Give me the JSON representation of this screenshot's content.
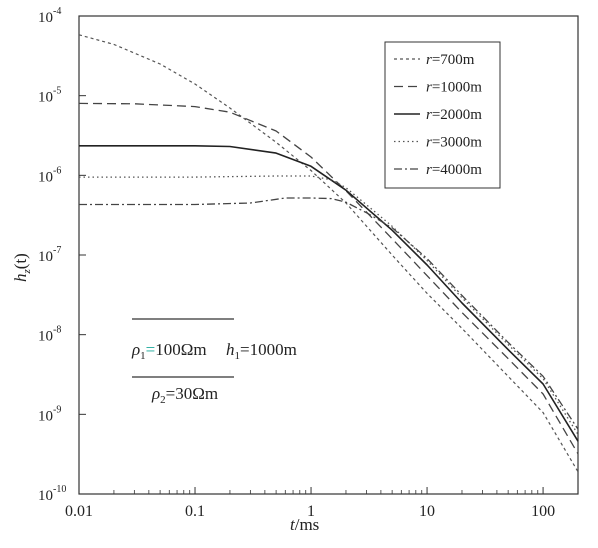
{
  "chart_data": {
    "type": "line",
    "x_scale": "log",
    "y_scale": "log",
    "xlim": [
      0.01,
      200
    ],
    "ylim": [
      1e-10,
      0.0001
    ],
    "xlabel": {
      "main": "t",
      "unit": "/ms"
    },
    "ylabel": {
      "main": "h",
      "sub": "z",
      "arg": "(t)"
    },
    "x_ticks": [
      {
        "value": 0.01,
        "label": "0.01"
      },
      {
        "value": 0.1,
        "label": "0.1"
      },
      {
        "value": 1,
        "label": "1"
      },
      {
        "value": 10,
        "label": "10"
      },
      {
        "value": 100,
        "label": "100"
      }
    ],
    "y_ticks": [
      {
        "value": 1e-10,
        "base": "10",
        "exp": "-10"
      },
      {
        "value": 1e-09,
        "base": "10",
        "exp": "-9"
      },
      {
        "value": 1e-08,
        "base": "10",
        "exp": "-8"
      },
      {
        "value": 1e-07,
        "base": "10",
        "exp": "-7"
      },
      {
        "value": 1e-06,
        "base": "10",
        "exp": "-6"
      },
      {
        "value": 1e-05,
        "base": "10",
        "exp": "-5"
      },
      {
        "value": 0.0001,
        "base": "10",
        "exp": "-4"
      }
    ],
    "legend_position": "top-right",
    "series": [
      {
        "name": "r=700m",
        "var": "r",
        "value": "=700m",
        "dash": "3,3",
        "color": "#555555",
        "width": 1.2,
        "points": [
          [
            0.01,
            5.8e-05
          ],
          [
            0.02,
            4.4e-05
          ],
          [
            0.05,
            2.5e-05
          ],
          [
            0.1,
            1.4e-05
          ],
          [
            0.2,
            7e-06
          ],
          [
            0.5,
            2.6e-06
          ],
          [
            1,
            1.15e-06
          ],
          [
            2,
            4.5e-07
          ],
          [
            5,
            1e-07
          ],
          [
            10,
            3.3e-08
          ],
          [
            20,
            1.2e-08
          ],
          [
            50,
            3e-09
          ],
          [
            100,
            1.05e-09
          ],
          [
            200,
            1.9e-10
          ]
        ]
      },
      {
        "name": "r=1000m",
        "var": "r",
        "value": "=1000m",
        "dash": "9,5",
        "color": "#444444",
        "width": 1.3,
        "points": [
          [
            0.01,
            8e-06
          ],
          [
            0.03,
            7.9e-06
          ],
          [
            0.1,
            7.3e-06
          ],
          [
            0.2,
            6.2e-06
          ],
          [
            0.5,
            3.6e-06
          ],
          [
            1,
            1.7e-06
          ],
          [
            2,
            6.4e-07
          ],
          [
            5,
            1.6e-07
          ],
          [
            10,
            5.5e-08
          ],
          [
            20,
            1.9e-08
          ],
          [
            50,
            5e-09
          ],
          [
            100,
            1.8e-09
          ],
          [
            200,
            3.2e-10
          ]
        ]
      },
      {
        "name": "r=2000m",
        "var": "r",
        "value": "=2000m",
        "dash": "",
        "color": "#222222",
        "width": 1.6,
        "points": [
          [
            0.01,
            2.35e-06
          ],
          [
            0.1,
            2.35e-06
          ],
          [
            0.2,
            2.3e-06
          ],
          [
            0.5,
            1.9e-06
          ],
          [
            1,
            1.3e-06
          ],
          [
            2,
            6.5e-07
          ],
          [
            5,
            2.05e-07
          ],
          [
            10,
            7.5e-08
          ],
          [
            20,
            2.5e-08
          ],
          [
            50,
            6.5e-09
          ],
          [
            100,
            2.4e-09
          ],
          [
            200,
            4.6e-10
          ]
        ]
      },
      {
        "name": "r=3000m",
        "var": "r",
        "value": "=3000m",
        "dash": "1.5,3",
        "color": "#555555",
        "width": 1.3,
        "points": [
          [
            0.01,
            9.5e-07
          ],
          [
            0.1,
            9.5e-07
          ],
          [
            0.5,
            9.8e-07
          ],
          [
            1,
            9.8e-07
          ],
          [
            1.5,
            8.8e-07
          ],
          [
            2,
            7e-07
          ],
          [
            5,
            2.3e-07
          ],
          [
            10,
            8.5e-08
          ],
          [
            20,
            2.9e-08
          ],
          [
            50,
            7.5e-09
          ],
          [
            100,
            2.8e-09
          ],
          [
            200,
            5.6e-10
          ]
        ]
      },
      {
        "name": "r=4000m",
        "var": "r",
        "value": "=4000m",
        "dash": "8,3,2,3",
        "color": "#444444",
        "width": 1.3,
        "points": [
          [
            0.01,
            4.3e-07
          ],
          [
            0.1,
            4.3e-07
          ],
          [
            0.3,
            4.5e-07
          ],
          [
            0.6,
            5.2e-07
          ],
          [
            1,
            5.2e-07
          ],
          [
            1.5,
            5.1e-07
          ],
          [
            2,
            4.6e-07
          ],
          [
            3,
            3.4e-07
          ],
          [
            5,
            2.2e-07
          ],
          [
            10,
            9e-08
          ],
          [
            20,
            3.1e-08
          ],
          [
            50,
            8e-09
          ],
          [
            100,
            3e-09
          ],
          [
            200,
            6.5e-10
          ]
        ]
      }
    ],
    "annotation": {
      "rho1_sym": "ρ",
      "rho1_sub": "1",
      "rho1_eq": "=",
      "rho1_val": "100Ωm",
      "h1_sym": "h",
      "h1_sub": "1",
      "h1_val": "=1000m",
      "rho2_sym": "ρ",
      "rho2_sub": "2",
      "rho2_val": "=30Ωm"
    }
  }
}
